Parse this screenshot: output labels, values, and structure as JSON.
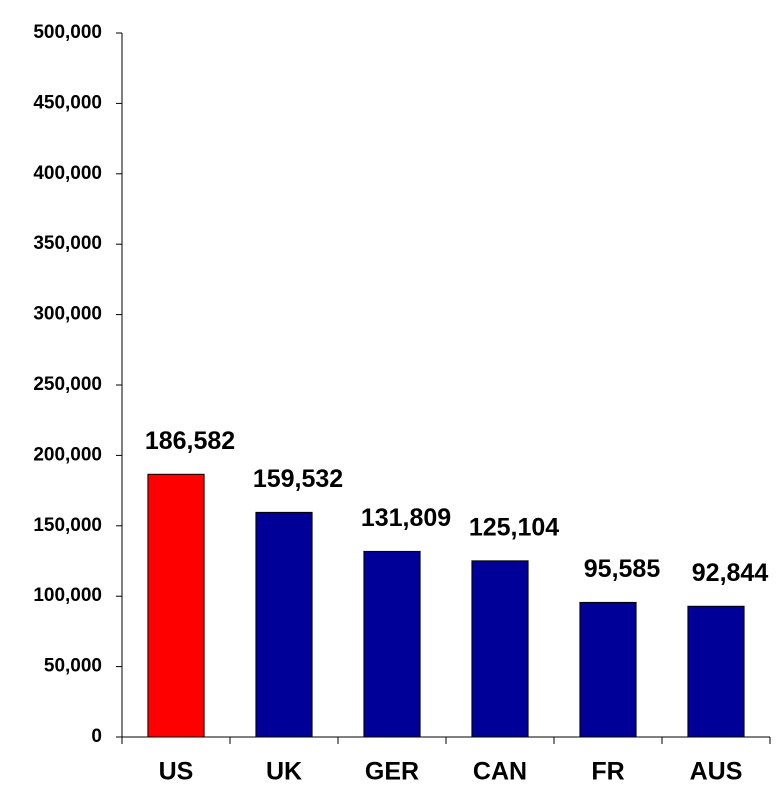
{
  "chart_data": {
    "type": "bar",
    "categories": [
      "US",
      "UK",
      "GER",
      "CAN",
      "FR",
      "AUS"
    ],
    "values": [
      186582,
      159532,
      131809,
      125104,
      95585,
      92844
    ],
    "value_labels": [
      "186,582",
      "159,532",
      "131,809",
      "125,104",
      "95,585",
      "92,844"
    ],
    "colors": [
      "#ff0000",
      "#000099",
      "#000099",
      "#000099",
      "#000099",
      "#000099"
    ],
    "ylim": [
      0,
      500000
    ],
    "yticks": [
      0,
      {
        "value": 50000,
        "label": "50,000"
      },
      {
        "value": 100000,
        "label": "100,000"
      },
      {
        "value": 150000,
        "label": "150,000"
      },
      {
        "value": 200000,
        "label": "200,000"
      },
      {
        "value": 250000,
        "label": "250,000"
      },
      {
        "value": 300000,
        "label": "300,000"
      },
      {
        "value": 350000,
        "label": "350,000"
      },
      {
        "value": 400000,
        "label": "400,000"
      },
      {
        "value": 450000,
        "label": "450,000"
      },
      {
        "value": 500000,
        "label": "500,000"
      }
    ],
    "grid": false
  }
}
